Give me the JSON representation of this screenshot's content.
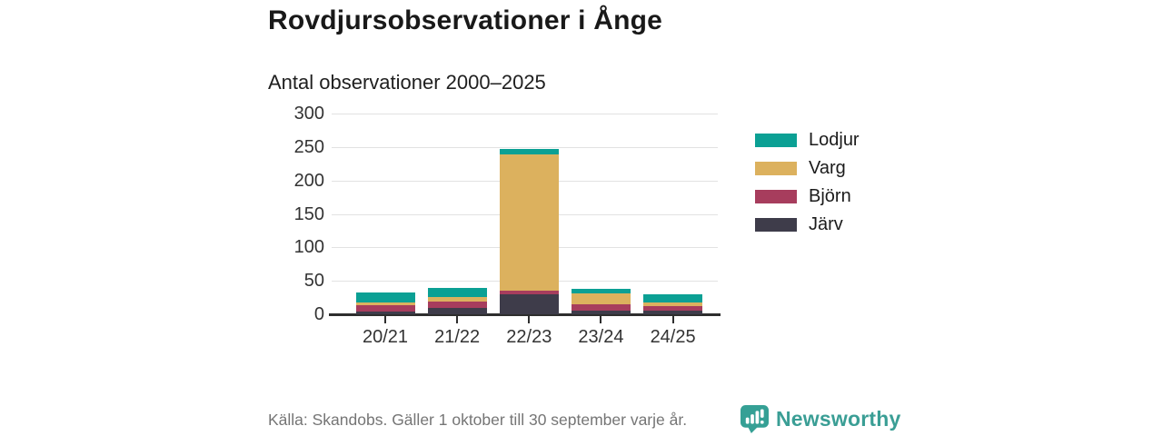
{
  "header": {
    "title": "Rovdjursobservationer i Ånge",
    "subtitle": "Antal observationer 2000–2025"
  },
  "chart_data": {
    "type": "bar",
    "stacked": true,
    "title": "Rovdjursobservationer i Ånge",
    "subtitle": "Antal observationer 2000–2025",
    "categories": [
      "20/21",
      "21/22",
      "22/23",
      "23/24",
      "24/25"
    ],
    "series": [
      {
        "name": "Järv",
        "color": "#3e3c4a",
        "values": [
          4,
          10,
          30,
          5,
          5
        ]
      },
      {
        "name": "Björn",
        "color": "#a73d5d",
        "values": [
          9,
          9,
          5,
          10,
          7
        ]
      },
      {
        "name": "Varg",
        "color": "#dcb15e",
        "values": [
          5,
          7,
          204,
          16,
          5
        ]
      },
      {
        "name": "Lodjur",
        "color": "#0ba094",
        "values": [
          14,
          14,
          8,
          7,
          13
        ]
      }
    ],
    "totals": [
      32,
      40,
      247,
      38,
      30
    ],
    "xlabel": "",
    "ylabel": "",
    "ylim": [
      0,
      300
    ],
    "yticks": [
      0,
      50,
      100,
      150,
      200,
      250,
      300
    ],
    "grid": true,
    "legend_position": "right",
    "legend_order": [
      "Lodjur",
      "Varg",
      "Björn",
      "Järv"
    ]
  },
  "footer": {
    "source": "Källa: Skandobs. Gäller 1 oktober till 30 september varje år.",
    "brand": "Newsworthy",
    "brand_color": "#3a9e95"
  }
}
